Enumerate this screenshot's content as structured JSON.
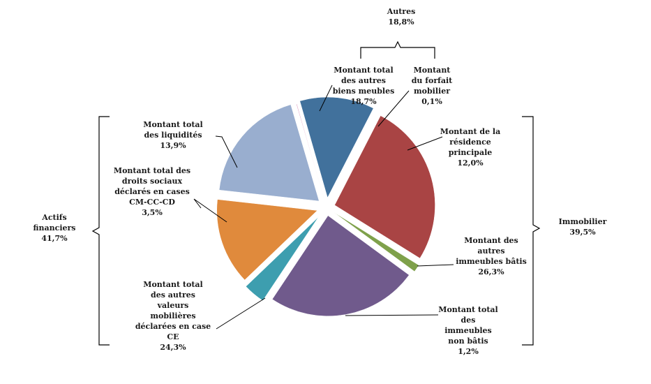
{
  "chart_data": {
    "type": "pie",
    "slices": [
      {
        "label": [
          "Montant de la",
          "résidence",
          "principale"
        ],
        "value_label": "12,0%",
        "value": 12.0,
        "color": "#41719c"
      },
      {
        "label": [
          "Montant des",
          "autres",
          "immeubles bâtis"
        ],
        "value_label": "26,3%",
        "value": 26.3,
        "color": "#a94444"
      },
      {
        "label": [
          "Montant total",
          "des",
          "immeubles",
          "non bâtis"
        ],
        "value_label": "1,2%",
        "value": 1.2,
        "color": "#7fa14b"
      },
      {
        "label": [
          "Montant total",
          "des autres",
          "valeurs",
          "mobilières",
          "déclarées en case",
          "CE"
        ],
        "value_label": "24,3%",
        "value": 24.3,
        "color": "#705a8c"
      },
      {
        "label": [
          "Montant total des",
          "droits sociaux",
          "déclarés en cases",
          "CM-CC-CD"
        ],
        "value_label": "3,5%",
        "value": 3.5,
        "color": "#3d9eaf"
      },
      {
        "label": [
          "Montant total",
          "des liquidités"
        ],
        "value_label": "13,9%",
        "value": 13.9,
        "color": "#e08a3c"
      },
      {
        "label": [
          "Montant total",
          "des autres",
          "biens meubles"
        ],
        "value_label": "18,7%",
        "value": 18.7,
        "color": "#99aecf"
      },
      {
        "label": [
          "Montant",
          "du forfait",
          "mobilier"
        ],
        "value_label": "0,1%",
        "value": 0.1,
        "color": "#c95f9a"
      }
    ],
    "groups": [
      {
        "label": "Autres",
        "value_label": "18,8%"
      },
      {
        "label": "Immobilier",
        "value_label": "39,5%"
      },
      {
        "label": "Actifs financiers",
        "lines": [
          "Actifs",
          "financiers"
        ],
        "value_label": "41,7%"
      }
    ]
  }
}
